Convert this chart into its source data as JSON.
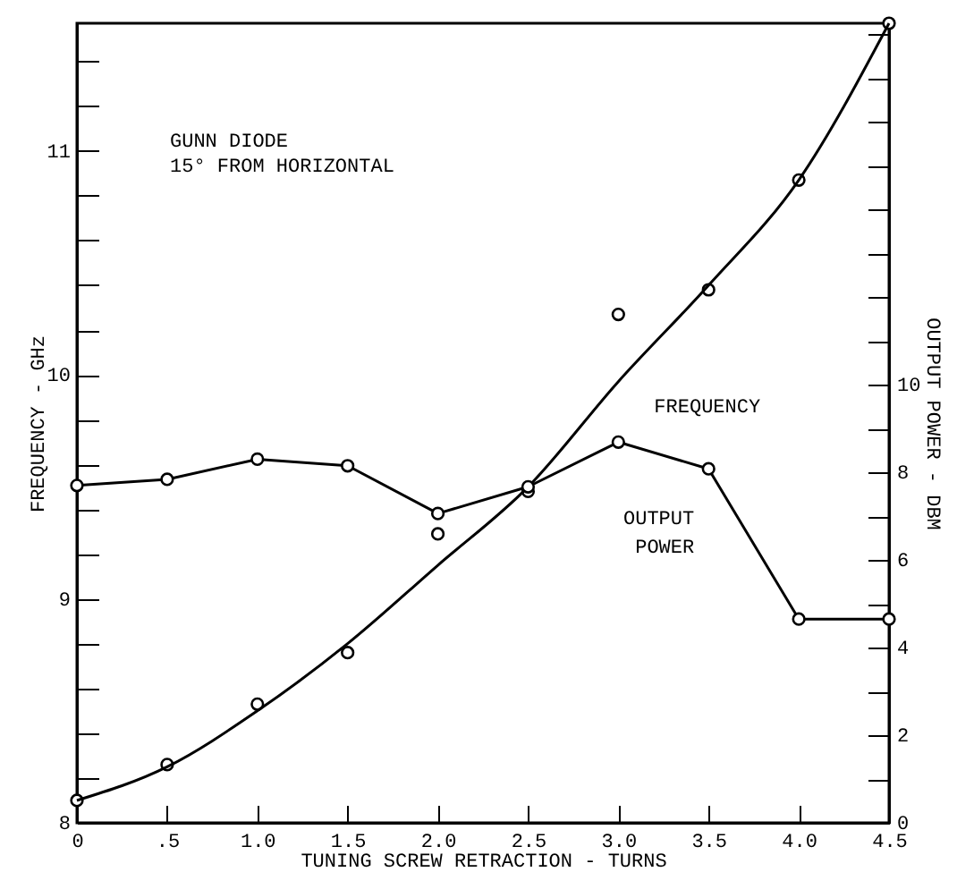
{
  "chart_data": {
    "type": "line",
    "xlabel": "TUNING SCREW RETRACTION - TURNS",
    "ylabel": "FREQUENCY - GHz",
    "y2label": "OUTPUT POWER - DBM",
    "annotations": [
      "GUNN DIODE",
      "15° FROM HORIZONTAL"
    ],
    "x": [
      0,
      0.5,
      1.0,
      1.5,
      2.0,
      2.5,
      3.0,
      3.5,
      4.0,
      4.5
    ],
    "series": [
      {
        "type": "scatter",
        "color": "#000000",
        "marker": "circle",
        "values": [
          8.1,
          8.26,
          8.53,
          8.76,
          9.29,
          9.48,
          10.27,
          10.38,
          10.87,
          11.57
        ]
      },
      {
        "name": "FREQUENCY",
        "color": "#000000",
        "marker": "none",
        "values": [
          8.1,
          8.25,
          8.5,
          8.8,
          9.15,
          9.5,
          9.97,
          10.4,
          10.87,
          11.57
        ]
      },
      {
        "name": "OUTPUT POWER",
        "color": "#000000",
        "marker": "circle",
        "axis": "y2",
        "values": [
          7.7,
          7.84,
          8.3,
          8.15,
          7.06,
          7.67,
          8.69,
          8.08,
          4.65,
          4.65
        ]
      }
    ],
    "xlim": [
      0,
      4.5
    ],
    "xticks": [
      0,
      {
        "value": 0.5,
        "label": ".5"
      },
      {
        "value": 1,
        "label": "1.0"
      },
      1.5,
      {
        "value": 2,
        "label": "2.0"
      },
      2.5,
      {
        "value": 3,
        "label": "3.0"
      },
      3.5,
      {
        "value": 4,
        "label": "4.0"
      },
      4.5
    ],
    "ylim": [
      8,
      11.57
    ],
    "yticks": [
      8,
      {
        "value": 8.2,
        "label": null
      },
      {
        "value": 8.4,
        "label": null
      },
      {
        "value": 8.6,
        "label": null
      },
      {
        "value": 8.8,
        "label": null
      },
      9,
      {
        "value": 9.2,
        "label": null
      },
      {
        "value": 9.4,
        "label": null
      },
      {
        "value": 9.6,
        "label": null
      },
      {
        "value": 9.8,
        "label": null
      },
      10,
      {
        "value": 10.2,
        "label": null
      },
      {
        "value": 10.4,
        "label": null
      },
      {
        "value": 10.6,
        "label": null
      },
      {
        "value": 10.8,
        "label": null
      },
      11,
      {
        "value": 11.2,
        "label": null
      },
      {
        "value": 11.4,
        "label": null
      }
    ],
    "y2lim": [
      0,
      18.25
    ],
    "y2ticks": [
      0,
      {
        "value": 1,
        "label": null
      },
      2,
      {
        "value": 3,
        "label": null
      },
      4,
      {
        "value": 5,
        "label": null
      },
      6,
      {
        "value": 7,
        "label": null
      },
      8,
      {
        "value": 9,
        "label": null
      },
      10,
      {
        "value": 11,
        "label": null
      },
      {
        "value": 12,
        "label": null
      },
      {
        "value": 13,
        "label": null
      },
      {
        "value": 14,
        "label": null
      },
      {
        "value": 15,
        "label": null
      },
      {
        "value": 16,
        "label": null
      },
      {
        "value": 17,
        "label": null
      },
      {
        "value": 18,
        "label": null
      }
    ],
    "grid": false
  }
}
